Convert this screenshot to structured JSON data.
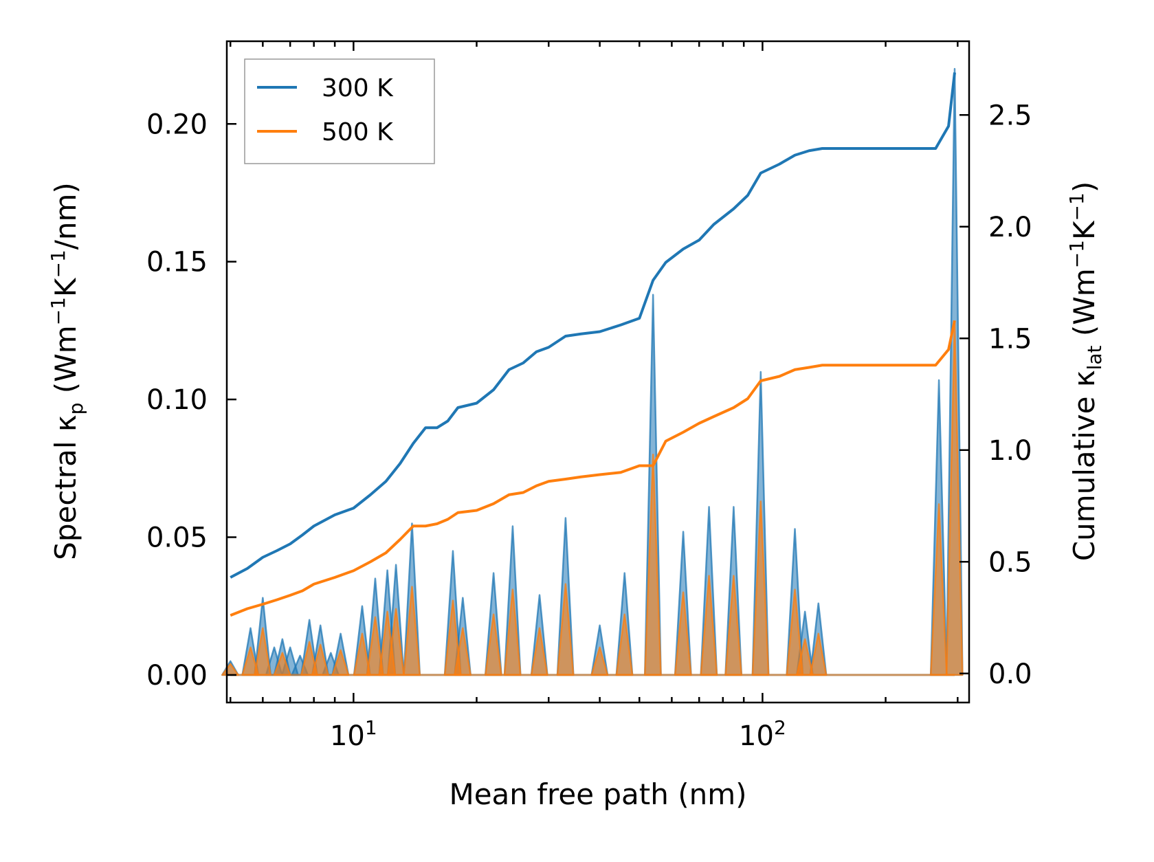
{
  "chart_data": {
    "type": "line",
    "subtype": "log-x dual-axis spectral + cumulative thermal conductivity",
    "xscale": "log",
    "xlabel": "Mean free path (nm)",
    "xlim": [
      4.9,
      320
    ],
    "x_major_ticks": [
      10,
      100
    ],
    "x_tick_labels": [
      {
        "base": "10",
        "exp": "1"
      },
      {
        "base": "10",
        "exp": "2"
      }
    ],
    "y_left": {
      "label_parts": [
        "Spectral κ",
        "p",
        " (Wm",
        "−1",
        "K",
        "−1",
        "/nm)"
      ],
      "lim": [
        -0.01,
        0.23
      ],
      "ticks": [
        0.0,
        0.05,
        0.1,
        0.15,
        0.2
      ],
      "tick_labels": [
        "0.00",
        "0.05",
        "0.10",
        "0.15",
        "0.20"
      ]
    },
    "y_right": {
      "label_parts": [
        "Cumulative κ",
        "lat",
        " (Wm",
        "−1",
        "K",
        "−1",
        ")"
      ],
      "lim": [
        -0.13,
        2.83
      ],
      "ticks": [
        0.0,
        0.5,
        1.0,
        1.5,
        2.0,
        2.5
      ],
      "tick_labels": [
        "0.0",
        "0.5",
        "1.0",
        "1.5",
        "2.0",
        "2.5"
      ]
    },
    "legend": {
      "position": "upper-left",
      "entries": [
        {
          "label": "300 K",
          "color": "#1f77b4"
        },
        {
          "label": "500 K",
          "color": "#ff7f0e"
        }
      ]
    },
    "spectral_peaks_300K": [
      {
        "x": 5.0,
        "y": 0.005
      },
      {
        "x": 5.6,
        "y": 0.017
      },
      {
        "x": 6.0,
        "y": 0.028
      },
      {
        "x": 6.4,
        "y": 0.01
      },
      {
        "x": 6.7,
        "y": 0.013
      },
      {
        "x": 7.0,
        "y": 0.01
      },
      {
        "x": 7.4,
        "y": 0.007
      },
      {
        "x": 7.8,
        "y": 0.02
      },
      {
        "x": 8.3,
        "y": 0.018
      },
      {
        "x": 8.8,
        "y": 0.008
      },
      {
        "x": 9.3,
        "y": 0.015
      },
      {
        "x": 10.5,
        "y": 0.025
      },
      {
        "x": 11.3,
        "y": 0.035
      },
      {
        "x": 12.1,
        "y": 0.038
      },
      {
        "x": 12.7,
        "y": 0.04
      },
      {
        "x": 13.9,
        "y": 0.055
      },
      {
        "x": 17.5,
        "y": 0.045
      },
      {
        "x": 18.5,
        "y": 0.028
      },
      {
        "x": 22.0,
        "y": 0.037
      },
      {
        "x": 24.5,
        "y": 0.054
      },
      {
        "x": 28.5,
        "y": 0.029
      },
      {
        "x": 33.0,
        "y": 0.057
      },
      {
        "x": 40.0,
        "y": 0.018
      },
      {
        "x": 46.0,
        "y": 0.037
      },
      {
        "x": 54.0,
        "y": 0.138
      },
      {
        "x": 64.0,
        "y": 0.052
      },
      {
        "x": 74.0,
        "y": 0.061
      },
      {
        "x": 85.0,
        "y": 0.061
      },
      {
        "x": 99.0,
        "y": 0.11
      },
      {
        "x": 120.0,
        "y": 0.053
      },
      {
        "x": 127.0,
        "y": 0.023
      },
      {
        "x": 137.0,
        "y": 0.026
      },
      {
        "x": 270.0,
        "y": 0.107
      },
      {
        "x": 295.0,
        "y": 0.22
      }
    ],
    "spectral_peaks_500K": [
      {
        "x": 5.0,
        "y": 0.004
      },
      {
        "x": 5.6,
        "y": 0.01
      },
      {
        "x": 6.0,
        "y": 0.017
      },
      {
        "x": 6.7,
        "y": 0.008
      },
      {
        "x": 7.8,
        "y": 0.012
      },
      {
        "x": 8.3,
        "y": 0.011
      },
      {
        "x": 9.3,
        "y": 0.009
      },
      {
        "x": 10.5,
        "y": 0.015
      },
      {
        "x": 11.3,
        "y": 0.021
      },
      {
        "x": 12.1,
        "y": 0.023
      },
      {
        "x": 12.7,
        "y": 0.024
      },
      {
        "x": 13.9,
        "y": 0.032
      },
      {
        "x": 17.5,
        "y": 0.027
      },
      {
        "x": 18.5,
        "y": 0.017
      },
      {
        "x": 22.0,
        "y": 0.022
      },
      {
        "x": 24.5,
        "y": 0.031
      },
      {
        "x": 28.5,
        "y": 0.017
      },
      {
        "x": 33.0,
        "y": 0.033
      },
      {
        "x": 40.0,
        "y": 0.01
      },
      {
        "x": 46.0,
        "y": 0.022
      },
      {
        "x": 54.0,
        "y": 0.08
      },
      {
        "x": 64.0,
        "y": 0.03
      },
      {
        "x": 74.0,
        "y": 0.036
      },
      {
        "x": 85.0,
        "y": 0.036
      },
      {
        "x": 99.0,
        "y": 0.063
      },
      {
        "x": 120.0,
        "y": 0.031
      },
      {
        "x": 127.0,
        "y": 0.013
      },
      {
        "x": 137.0,
        "y": 0.015
      },
      {
        "x": 270.0,
        "y": 0.062
      },
      {
        "x": 295.0,
        "y": 0.128
      }
    ],
    "cumulative_300K": {
      "x": [
        5.0,
        5.5,
        6.0,
        6.5,
        7.0,
        7.5,
        8.0,
        9.0,
        10.0,
        11.0,
        12.0,
        13.0,
        14.0,
        15.0,
        16.0,
        17.0,
        18.0,
        20.0,
        22.0,
        24.0,
        26.0,
        28.0,
        30.0,
        33.0,
        36.0,
        40.0,
        45.0,
        50.0,
        54.0,
        58.0,
        64.0,
        70.0,
        76.0,
        85.0,
        92.0,
        99.0,
        110.0,
        120.0,
        130.0,
        140.0,
        200.0,
        265.0,
        285.0,
        295.0
      ],
      "y": [
        0.43,
        0.47,
        0.52,
        0.55,
        0.58,
        0.62,
        0.66,
        0.71,
        0.74,
        0.8,
        0.86,
        0.94,
        1.03,
        1.1,
        1.1,
        1.13,
        1.19,
        1.21,
        1.27,
        1.36,
        1.39,
        1.44,
        1.46,
        1.51,
        1.52,
        1.53,
        1.56,
        1.59,
        1.76,
        1.84,
        1.9,
        1.94,
        2.01,
        2.08,
        2.14,
        2.24,
        2.28,
        2.32,
        2.34,
        2.35,
        2.35,
        2.35,
        2.45,
        2.69
      ]
    },
    "cumulative_500K": {
      "x": [
        5.0,
        5.5,
        6.0,
        6.5,
        7.0,
        7.5,
        8.0,
        9.0,
        10.0,
        11.0,
        12.0,
        13.0,
        14.0,
        15.0,
        16.0,
        17.0,
        18.0,
        20.0,
        22.0,
        24.0,
        26.0,
        28.0,
        30.0,
        33.0,
        36.0,
        40.0,
        45.0,
        50.0,
        54.0,
        58.0,
        64.0,
        70.0,
        76.0,
        85.0,
        92.0,
        99.0,
        110.0,
        120.0,
        130.0,
        140.0,
        200.0,
        265.0,
        285.0,
        295.0
      ],
      "y": [
        0.26,
        0.29,
        0.31,
        0.33,
        0.35,
        0.37,
        0.4,
        0.43,
        0.46,
        0.5,
        0.54,
        0.6,
        0.66,
        0.66,
        0.67,
        0.69,
        0.72,
        0.73,
        0.76,
        0.8,
        0.81,
        0.84,
        0.86,
        0.87,
        0.88,
        0.89,
        0.9,
        0.93,
        0.93,
        1.04,
        1.08,
        1.12,
        1.15,
        1.19,
        1.23,
        1.31,
        1.33,
        1.36,
        1.37,
        1.38,
        1.38,
        1.38,
        1.45,
        1.58
      ]
    },
    "grid": false
  }
}
